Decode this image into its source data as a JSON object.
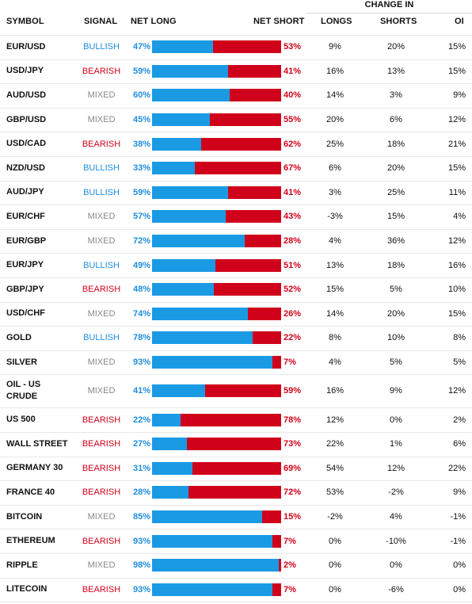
{
  "header": {
    "symbol": "SYMBOL",
    "signal": "SIGNAL",
    "net_long": "NET LONG",
    "net_short": "NET SHORT",
    "change_in": "CHANGE IN",
    "longs": "LONGS",
    "shorts": "SHORTS",
    "oi": "OI"
  },
  "colors": {
    "long_blue": "#1b9ae4",
    "short_red": "#d0021b",
    "bullish": "#1f8de0",
    "bearish": "#d0021b",
    "mixed": "#888888"
  },
  "rows": [
    {
      "symbol": "EUR/USD",
      "signal": "BULLISH",
      "long_pct": 47,
      "long": "47%",
      "short": "53%",
      "longs": "9%",
      "shorts": "20%",
      "oi": "15%"
    },
    {
      "symbol": "USD/JPY",
      "signal": "BEARISH",
      "long_pct": 59,
      "long": "59%",
      "short": "41%",
      "longs": "16%",
      "shorts": "13%",
      "oi": "15%"
    },
    {
      "symbol": "AUD/USD",
      "signal": "MIXED",
      "long_pct": 60,
      "long": "60%",
      "short": "40%",
      "longs": "14%",
      "shorts": "3%",
      "oi": "9%"
    },
    {
      "symbol": "GBP/USD",
      "signal": "MIXED",
      "long_pct": 45,
      "long": "45%",
      "short": "55%",
      "longs": "20%",
      "shorts": "6%",
      "oi": "12%"
    },
    {
      "symbol": "USD/CAD",
      "signal": "BEARISH",
      "long_pct": 38,
      "long": "38%",
      "short": "62%",
      "longs": "25%",
      "shorts": "18%",
      "oi": "21%"
    },
    {
      "symbol": "NZD/USD",
      "signal": "BULLISH",
      "long_pct": 33,
      "long": "33%",
      "short": "67%",
      "longs": "6%",
      "shorts": "20%",
      "oi": "15%"
    },
    {
      "symbol": "AUD/JPY",
      "signal": "BULLISH",
      "long_pct": 59,
      "long": "59%",
      "short": "41%",
      "longs": "3%",
      "shorts": "25%",
      "oi": "11%"
    },
    {
      "symbol": "EUR/CHF",
      "signal": "MIXED",
      "long_pct": 57,
      "long": "57%",
      "short": "43%",
      "longs": "-3%",
      "shorts": "15%",
      "oi": "4%"
    },
    {
      "symbol": "EUR/GBP",
      "signal": "MIXED",
      "long_pct": 72,
      "long": "72%",
      "short": "28%",
      "longs": "4%",
      "shorts": "36%",
      "oi": "12%"
    },
    {
      "symbol": "EUR/JPY",
      "signal": "BULLISH",
      "long_pct": 49,
      "long": "49%",
      "short": "51%",
      "longs": "13%",
      "shorts": "18%",
      "oi": "16%"
    },
    {
      "symbol": "GBP/JPY",
      "signal": "BEARISH",
      "long_pct": 48,
      "long": "48%",
      "short": "52%",
      "longs": "15%",
      "shorts": "5%",
      "oi": "10%"
    },
    {
      "symbol": "USD/CHF",
      "signal": "MIXED",
      "long_pct": 74,
      "long": "74%",
      "short": "26%",
      "longs": "14%",
      "shorts": "20%",
      "oi": "15%"
    },
    {
      "symbol": "GOLD",
      "signal": "BULLISH",
      "long_pct": 78,
      "long": "78%",
      "short": "22%",
      "longs": "8%",
      "shorts": "10%",
      "oi": "8%"
    },
    {
      "symbol": "SILVER",
      "signal": "MIXED",
      "long_pct": 93,
      "long": "93%",
      "short": "7%",
      "longs": "4%",
      "shorts": "5%",
      "oi": "5%"
    },
    {
      "symbol": "OIL - US CRUDE",
      "signal": "MIXED",
      "long_pct": 41,
      "long": "41%",
      "short": "59%",
      "longs": "16%",
      "shorts": "9%",
      "oi": "12%"
    },
    {
      "symbol": "US 500",
      "signal": "BEARISH",
      "long_pct": 22,
      "long": "22%",
      "short": "78%",
      "longs": "12%",
      "shorts": "0%",
      "oi": "2%"
    },
    {
      "symbol": "WALL STREET",
      "signal": "BEARISH",
      "long_pct": 27,
      "long": "27%",
      "short": "73%",
      "longs": "22%",
      "shorts": "1%",
      "oi": "6%"
    },
    {
      "symbol": "GERMANY 30",
      "signal": "BEARISH",
      "long_pct": 31,
      "long": "31%",
      "short": "69%",
      "longs": "54%",
      "shorts": "12%",
      "oi": "22%"
    },
    {
      "symbol": "FRANCE 40",
      "signal": "BEARISH",
      "long_pct": 28,
      "long": "28%",
      "short": "72%",
      "longs": "53%",
      "shorts": "-2%",
      "oi": "9%"
    },
    {
      "symbol": "BITCOIN",
      "signal": "MIXED",
      "long_pct": 85,
      "long": "85%",
      "short": "15%",
      "longs": "-2%",
      "shorts": "4%",
      "oi": "-1%"
    },
    {
      "symbol": "ETHEREUM",
      "signal": "BEARISH",
      "long_pct": 93,
      "long": "93%",
      "short": "7%",
      "longs": "0%",
      "shorts": "-10%",
      "oi": "-1%"
    },
    {
      "symbol": "RIPPLE",
      "signal": "MIXED",
      "long_pct": 98,
      "long": "98%",
      "short": "2%",
      "longs": "0%",
      "shorts": "0%",
      "oi": "0%"
    },
    {
      "symbol": "LITECOIN",
      "signal": "BEARISH",
      "long_pct": 93,
      "long": "93%",
      "short": "7%",
      "longs": "0%",
      "shorts": "-6%",
      "oi": "0%"
    }
  ]
}
